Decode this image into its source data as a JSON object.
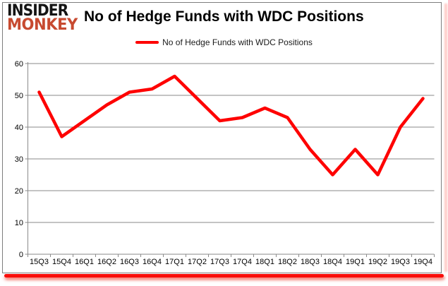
{
  "logo": {
    "line1": "INSIDER",
    "line2": "MONKEY"
  },
  "header": {
    "title": "No of Hedge Funds with WDC Positions"
  },
  "legend": {
    "label": "No of Hedge Funds with WDC Positions",
    "swatch_color": "#fe0000"
  },
  "chart_data": {
    "type": "line",
    "title": "No of Hedge Funds with WDC Positions",
    "categories": [
      "15Q3",
      "15Q4",
      "16Q1",
      "16Q2",
      "16Q3",
      "16Q4",
      "17Q1",
      "17Q2",
      "17Q3",
      "17Q4",
      "18Q1",
      "18Q2",
      "18Q3",
      "18Q4",
      "19Q1",
      "19Q2",
      "19Q3",
      "19Q4"
    ],
    "series": [
      {
        "name": "No of Hedge Funds with WDC Positions",
        "color": "#fe0000",
        "values": [
          51,
          37,
          42,
          47,
          51,
          52,
          56,
          49,
          42,
          43,
          46,
          43,
          33,
          25,
          33,
          25,
          40,
          49
        ]
      }
    ],
    "xlabel": "",
    "ylabel": "",
    "ylim": [
      0,
      60
    ],
    "ytick_step": 10,
    "grid": true,
    "legend_position": "top"
  },
  "colors": {
    "accent_red": "#fe0000",
    "logo_red": "#c74a30",
    "grid": "#8a8a8a",
    "axis": "#8a8a8a",
    "panel_border": "#7e7e7e",
    "text": "#000000"
  }
}
